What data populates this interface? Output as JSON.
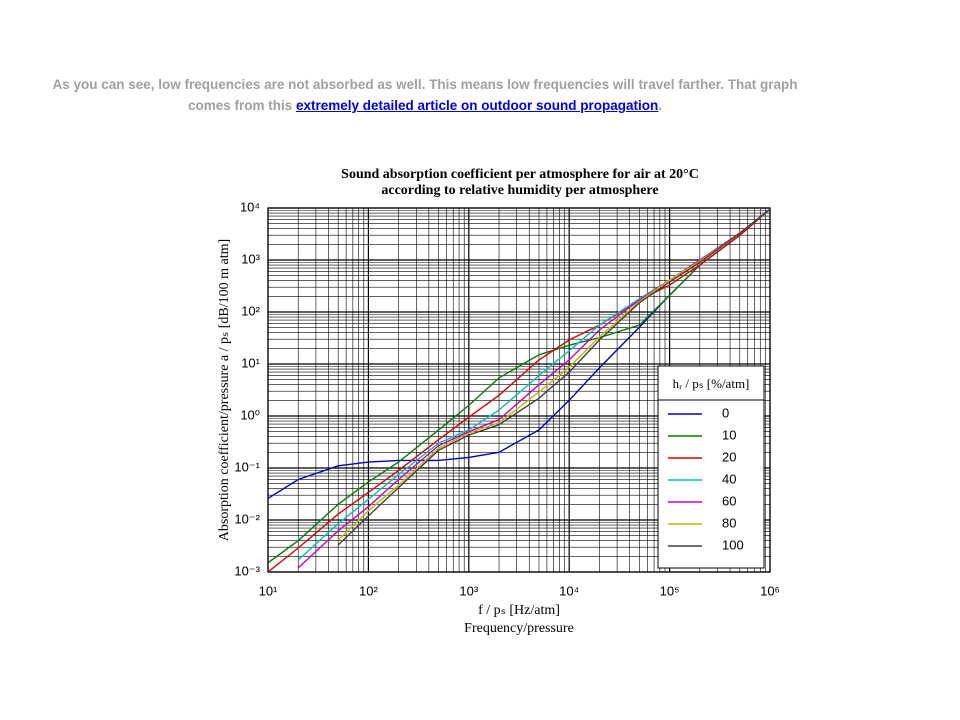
{
  "intro": {
    "text": "As you can see, low frequencies are not absorbed as well. This means low frequencies will travel farther. That graph comes from this ",
    "link": "extremely detailed article on outdoor sound propagation",
    "end": "."
  },
  "chart_data": {
    "type": "line",
    "title": "Sound absorption coefficient per atmosphere for air at 20°C",
    "subtitle": "according to relative humidity per atmosphere",
    "x_label": "f / pₛ [Hz/atm]",
    "x_label_2": "Frequency/pressure",
    "y_label": "Absorption coefficient/pressure a / pₛ [dB/100 m atm]",
    "legend_title": "hᵣ / pₛ [%/atm]",
    "legend": "lower right",
    "xscale": "log",
    "yscale": "log",
    "grid": true,
    "xlim": [
      10,
      1000000
    ],
    "ylim": [
      0.001,
      10000
    ],
    "xticks": [
      {
        "value": 10,
        "label": "10¹"
      },
      {
        "value": 100,
        "label": "10²"
      },
      {
        "value": 1000,
        "label": "10³"
      },
      {
        "value": 10000,
        "label": "10⁴"
      },
      {
        "value": 100000,
        "label": "10⁵"
      },
      {
        "value": 1000000,
        "label": "10⁶"
      }
    ],
    "yticks": [
      {
        "value": 0.001,
        "label": "10⁻³"
      },
      {
        "value": 0.01,
        "label": "10⁻²"
      },
      {
        "value": 0.1,
        "label": "10⁻¹"
      },
      {
        "value": 1,
        "label": "10⁰"
      },
      {
        "value": 10,
        "label": "10¹"
      },
      {
        "value": 100,
        "label": "10²"
      },
      {
        "value": 1000,
        "label": "10³"
      },
      {
        "value": 10000,
        "label": "10⁴"
      }
    ],
    "x": [
      10,
      20,
      50,
      100,
      200,
      500,
      1000,
      2000,
      5000,
      10000,
      20000,
      50000,
      100000,
      200000,
      500000,
      1000000
    ],
    "series": [
      {
        "name": "0",
        "color": "#0000cc",
        "values": [
          0.026,
          0.06,
          0.11,
          0.13,
          0.14,
          0.14,
          0.16,
          0.2,
          0.54,
          2,
          8.4,
          51,
          210,
          800,
          3000,
          9500
        ]
      },
      {
        "name": "10",
        "color": "#008000",
        "values": [
          0.0015,
          0.004,
          0.02,
          0.054,
          0.13,
          0.54,
          1.6,
          5.4,
          15,
          23,
          32,
          56,
          210,
          800,
          3000,
          9500
        ]
      },
      {
        "name": "20",
        "color": "#e00000",
        "values": [
          0.001,
          0.0029,
          0.013,
          0.034,
          0.09,
          0.35,
          0.95,
          2.5,
          12,
          29,
          56,
          170,
          330,
          800,
          3000,
          9500
        ]
      },
      {
        "name": "40",
        "color": "#00c0c0",
        "values": [
          null,
          0.0017,
          0.0085,
          0.025,
          0.075,
          0.3,
          0.54,
          1.3,
          6,
          18,
          56,
          180,
          410,
          900,
          3300,
          9500
        ]
      },
      {
        "name": "60",
        "color": "#cc00cc",
        "values": [
          null,
          0.0012,
          0.0062,
          0.018,
          0.06,
          0.27,
          0.5,
          0.85,
          4,
          12,
          45,
          170,
          410,
          1000,
          3300,
          9500
        ]
      },
      {
        "name": "80",
        "color": "#c8b400",
        "values": [
          null,
          null,
          0.0041,
          0.015,
          0.047,
          0.24,
          0.47,
          0.74,
          2.9,
          8.7,
          33,
          160,
          410,
          950,
          3300,
          9500
        ]
      },
      {
        "name": "100",
        "color": "#404040",
        "values": [
          null,
          null,
          0.0033,
          0.012,
          0.042,
          0.22,
          0.43,
          0.68,
          2.2,
          7,
          29,
          150,
          380,
          900,
          3300,
          9500
        ]
      }
    ]
  }
}
